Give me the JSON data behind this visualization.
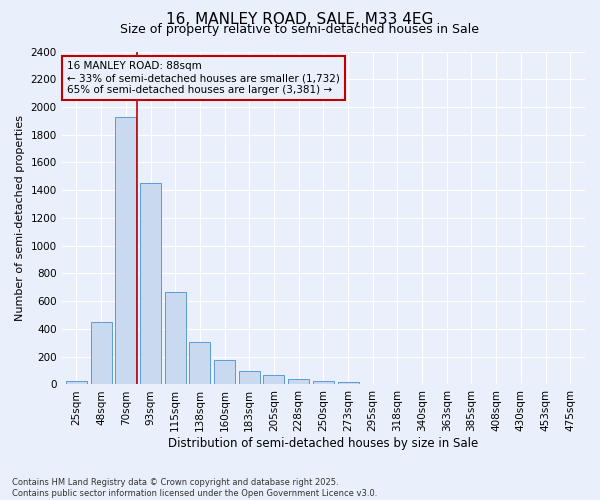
{
  "title": "16, MANLEY ROAD, SALE, M33 4EG",
  "subtitle": "Size of property relative to semi-detached houses in Sale",
  "xlabel": "Distribution of semi-detached houses by size in Sale",
  "ylabel": "Number of semi-detached properties",
  "footnote": "Contains HM Land Registry data © Crown copyright and database right 2025.\nContains public sector information licensed under the Open Government Licence v3.0.",
  "categories": [
    "25sqm",
    "48sqm",
    "70sqm",
    "93sqm",
    "115sqm",
    "138sqm",
    "160sqm",
    "183sqm",
    "205sqm",
    "228sqm",
    "250sqm",
    "273sqm",
    "295sqm",
    "318sqm",
    "340sqm",
    "363sqm",
    "385sqm",
    "408sqm",
    "430sqm",
    "453sqm",
    "475sqm"
  ],
  "values": [
    25,
    450,
    1930,
    1450,
    665,
    305,
    175,
    95,
    65,
    40,
    22,
    18,
    0,
    0,
    0,
    0,
    0,
    0,
    0,
    0,
    0
  ],
  "bar_color": "#c9d9f0",
  "bar_edge_color": "#5b9bd5",
  "property_line_x": 2.45,
  "property_size": "88sqm",
  "pct_smaller": 33,
  "count_smaller": 1732,
  "pct_larger": 65,
  "count_larger": 3381,
  "annotation_box_color": "#c00000",
  "ylim": [
    0,
    2400
  ],
  "yticks": [
    0,
    200,
    400,
    600,
    800,
    1000,
    1200,
    1400,
    1600,
    1800,
    2000,
    2200,
    2400
  ],
  "background_color": "#eaf0fb",
  "grid_color": "#ffffff",
  "title_fontsize": 11,
  "subtitle_fontsize": 9,
  "tick_fontsize": 7.5,
  "ylabel_fontsize": 8,
  "xlabel_fontsize": 8.5,
  "footnote_fontsize": 6,
  "ann_fontsize": 7.5
}
